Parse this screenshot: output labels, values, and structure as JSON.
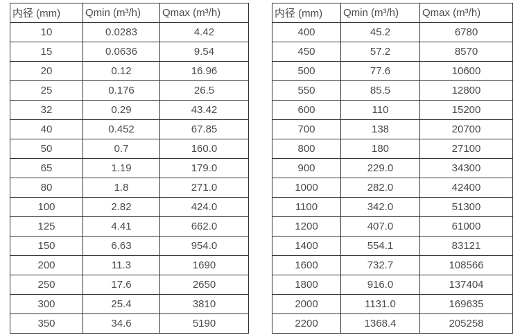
{
  "page": {
    "background_color": "#ffffff",
    "text_color": "#4a4a4a",
    "border_color": "#333333"
  },
  "tables": [
    {
      "name": "flow-table-small-diameters",
      "headers": [
        "内径 (mm)",
        "Qmin (m³/h)",
        "Qmax (m³/h)"
      ],
      "rows": [
        [
          "10",
          "0.0283",
          "4.42"
        ],
        [
          "15",
          "0.0636",
          "9.54"
        ],
        [
          "20",
          "0.12",
          "16.96"
        ],
        [
          "25",
          "0.176",
          "26.5"
        ],
        [
          "32",
          "0.29",
          "43.42"
        ],
        [
          "40",
          "0.452",
          "67.85"
        ],
        [
          "50",
          "0.7",
          "160.0"
        ],
        [
          "65",
          "1.19",
          "179.0"
        ],
        [
          "80",
          "1.8",
          "271.0"
        ],
        [
          "100",
          "2.82",
          "424.0"
        ],
        [
          "125",
          "4.41",
          "662.0"
        ],
        [
          "150",
          "6.63",
          "954.0"
        ],
        [
          "200",
          "11.3",
          "1690"
        ],
        [
          "250",
          "17.6",
          "2650"
        ],
        [
          "300",
          "25.4",
          "3810"
        ],
        [
          "350",
          "34.6",
          "5190"
        ]
      ]
    },
    {
      "name": "flow-table-large-diameters",
      "headers": [
        "内径 (mm)",
        "Qmin (m³/h)",
        "Qmax (m³/h)"
      ],
      "rows": [
        [
          "400",
          "45.2",
          "6780"
        ],
        [
          "450",
          "57.2",
          "8570"
        ],
        [
          "500",
          "77.6",
          "10600"
        ],
        [
          "550",
          "85.5",
          "12800"
        ],
        [
          "600",
          "110",
          "15200"
        ],
        [
          "700",
          "138",
          "20700"
        ],
        [
          "800",
          "180",
          "27100"
        ],
        [
          "900",
          "229.0",
          "34300"
        ],
        [
          "1000",
          "282.0",
          "42400"
        ],
        [
          "1100",
          "342.0",
          "51300"
        ],
        [
          "1200",
          "407.0",
          "61000"
        ],
        [
          "1400",
          "554.1",
          "83121"
        ],
        [
          "1600",
          "732.7",
          "108566"
        ],
        [
          "1800",
          "916.0",
          "137404"
        ],
        [
          "2000",
          "1131.0",
          "169635"
        ],
        [
          "2200",
          "1368.4",
          "205258"
        ]
      ]
    }
  ]
}
